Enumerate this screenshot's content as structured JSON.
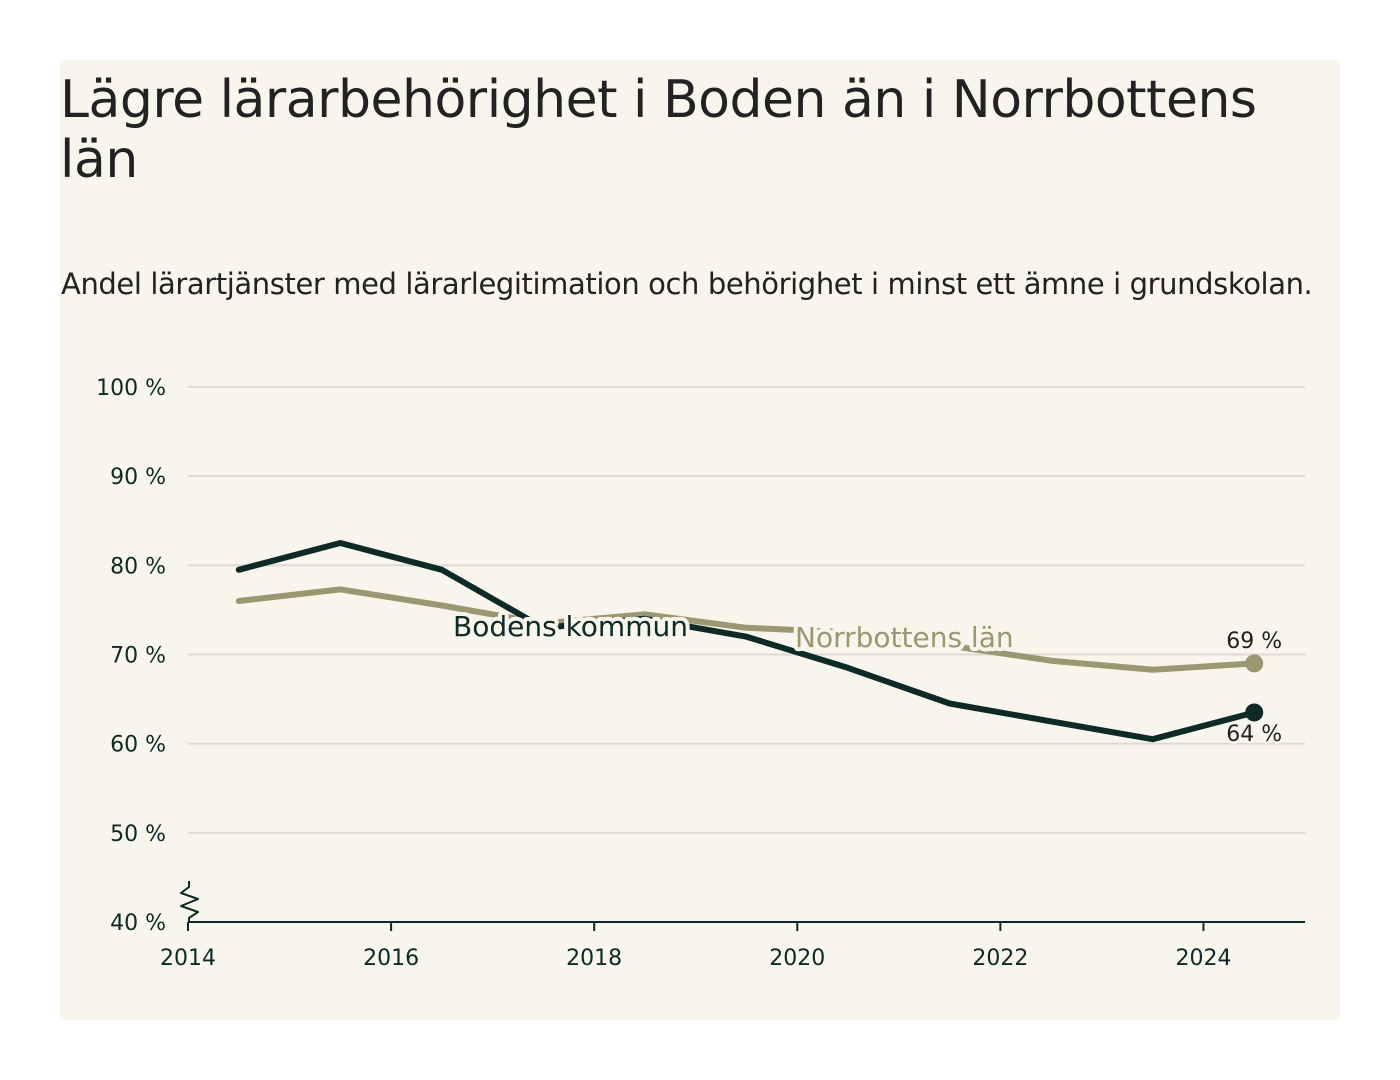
{
  "title": "Lägre lärarbehörighet i Boden än i Norrbottens län",
  "subtitle": "Andel lärartjänster med lärarlegitimation och behörighet i minst ett ämne i grundskolan.",
  "chart_data": {
    "type": "line",
    "title": "Lägre lärarbehörighet i Boden än i Norrbottens län",
    "subtitle": "Andel lärartjänster med lärarlegitimation och behörighet i minst ett ämne i grundskolan.",
    "xlim": [
      2014,
      2025
    ],
    "ylim": [
      40,
      100
    ],
    "x_ticks": [
      "2014",
      "2016",
      "2018",
      "2020",
      "2022",
      "2024"
    ],
    "y_ticks": [
      "40 %",
      "50 %",
      "60 %",
      "70 %",
      "80 %",
      "90 %",
      "100 %"
    ],
    "grid": true,
    "y_axis_break": true,
    "series": [
      {
        "name": "Bodens kommun",
        "color": "#0d2a26",
        "x": [
          2014.5,
          2015.5,
          2016.5,
          2017.5,
          2018.5,
          2019.5,
          2020.5,
          2021.5,
          2022.5,
          2023.5,
          2024.5
        ],
        "values": [
          79.5,
          82.5,
          79.5,
          73.0,
          74.0,
          72.0,
          68.5,
          64.5,
          62.5,
          60.5,
          63.5
        ],
        "end_label": "64 %"
      },
      {
        "name": "Norrbottens län",
        "color": "#9b9770",
        "x": [
          2014.5,
          2015.5,
          2016.5,
          2017.5,
          2018.5,
          2019.5,
          2020.5,
          2021.5,
          2022.5,
          2023.5,
          2024.5
        ],
        "values": [
          76.0,
          77.3,
          75.5,
          73.5,
          74.5,
          73.0,
          72.5,
          71.0,
          69.3,
          68.3,
          69.0
        ],
        "end_label": "69 %"
      }
    ]
  }
}
